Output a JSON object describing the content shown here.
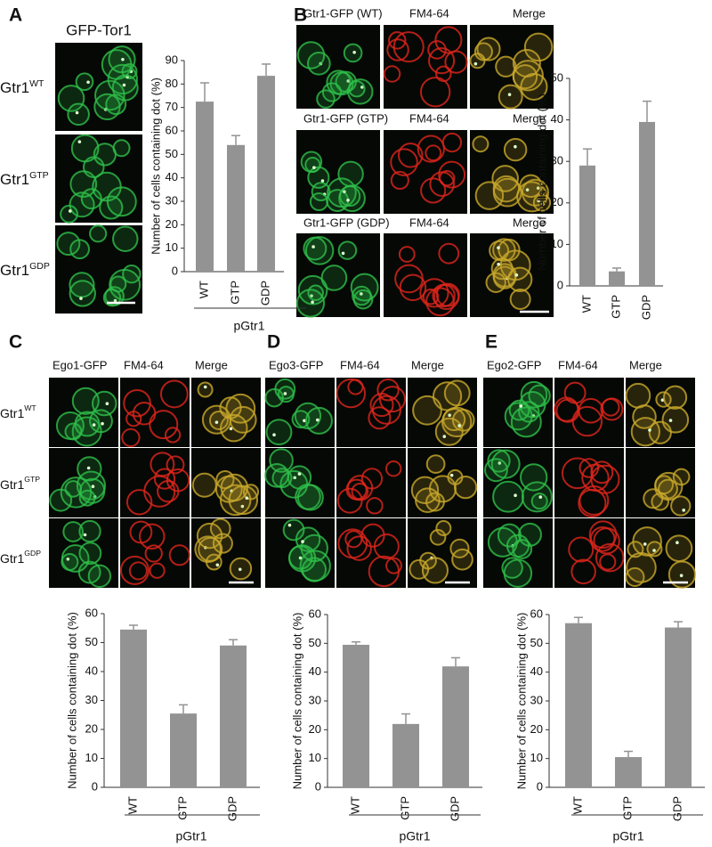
{
  "panels": [
    {
      "label": "A",
      "title": "GFP-Tor1",
      "rows": [
        {
          "base": "Gtr1",
          "sup": "WT"
        },
        {
          "base": "Gtr1",
          "sup": "GTP"
        },
        {
          "base": "Gtr1",
          "sup": "GDP"
        }
      ]
    },
    {
      "label": "B",
      "rows": [
        [
          "Gtr1-GFP (WT)",
          "FM4-64",
          "Merge"
        ],
        [
          "Gtr1-GFP (GTP)",
          "FM4-64",
          "Merge"
        ],
        [
          "Gtr1-GFP (GDP)",
          "FM4-64",
          "Merge"
        ]
      ]
    },
    {
      "label": "C",
      "columns": [
        "Ego1-GFP",
        "FM4-64",
        "Merge"
      ],
      "rows": [
        {
          "base": "Gtr1",
          "sup": "WT"
        },
        {
          "base": "Gtr1",
          "sup": "GTP"
        },
        {
          "base": "Gtr1",
          "sup": "GDP"
        }
      ]
    },
    {
      "label": "D",
      "columns": [
        "Ego3-GFP",
        "FM4-64",
        "Merge"
      ]
    },
    {
      "label": "E",
      "columns": [
        "Ego2-GFP",
        "FM4-64",
        "Merge"
      ]
    }
  ],
  "chart_data": [
    {
      "type": "bar",
      "y_label": "Number of cells containing dot (%)",
      "categories": [
        "WT",
        "GTP",
        "GDP"
      ],
      "values": [
        72.5,
        54,
        83.5
      ],
      "errors": [
        8,
        4,
        5
      ],
      "color": "#939393",
      "ylim": [
        0,
        90
      ],
      "yticks": [
        0,
        10,
        20,
        30,
        40,
        50,
        60,
        70,
        80,
        90
      ],
      "group_label": "pGtr1"
    },
    {
      "type": "bar",
      "y_label": "Number of cells containing dot (%)",
      "categories": [
        "WT",
        "GTP",
        "GDP"
      ],
      "values": [
        29,
        3.5,
        39.5
      ],
      "errors": [
        4,
        0.8,
        5
      ],
      "color": "#939393",
      "ylim": [
        0,
        50
      ],
      "yticks": [
        0,
        10,
        20,
        30,
        40,
        50
      ]
    },
    {
      "type": "bar",
      "y_label": "Number of cells containing dot (%)",
      "categories": [
        "WT",
        "GTP",
        "GDP"
      ],
      "values": [
        54.5,
        25.5,
        49
      ],
      "errors": [
        1.5,
        3,
        2
      ],
      "color": "#939393",
      "ylim": [
        0,
        60
      ],
      "yticks": [
        0,
        10,
        20,
        30,
        40,
        50,
        60
      ],
      "group_label": "pGtr1"
    },
    {
      "type": "bar",
      "y_label": "Number of cells containing dot (%)",
      "categories": [
        "WT",
        "GTP",
        "GDP"
      ],
      "values": [
        49.5,
        22,
        42
      ],
      "errors": [
        1,
        3.5,
        3
      ],
      "color": "#939393",
      "ylim": [
        0,
        60
      ],
      "yticks": [
        0,
        10,
        20,
        30,
        40,
        50,
        60
      ],
      "group_label": "pGtr1"
    },
    {
      "type": "bar",
      "y_label": "Number of cells containing dot (%)",
      "categories": [
        "WT",
        "GTP",
        "GDP"
      ],
      "values": [
        57,
        10.5,
        55.5
      ],
      "errors": [
        2,
        2,
        2
      ],
      "color": "#939393",
      "ylim": [
        0,
        60
      ],
      "yticks": [
        0,
        10,
        20,
        30,
        40,
        50,
        60
      ],
      "group_label": "pGtr1"
    }
  ]
}
